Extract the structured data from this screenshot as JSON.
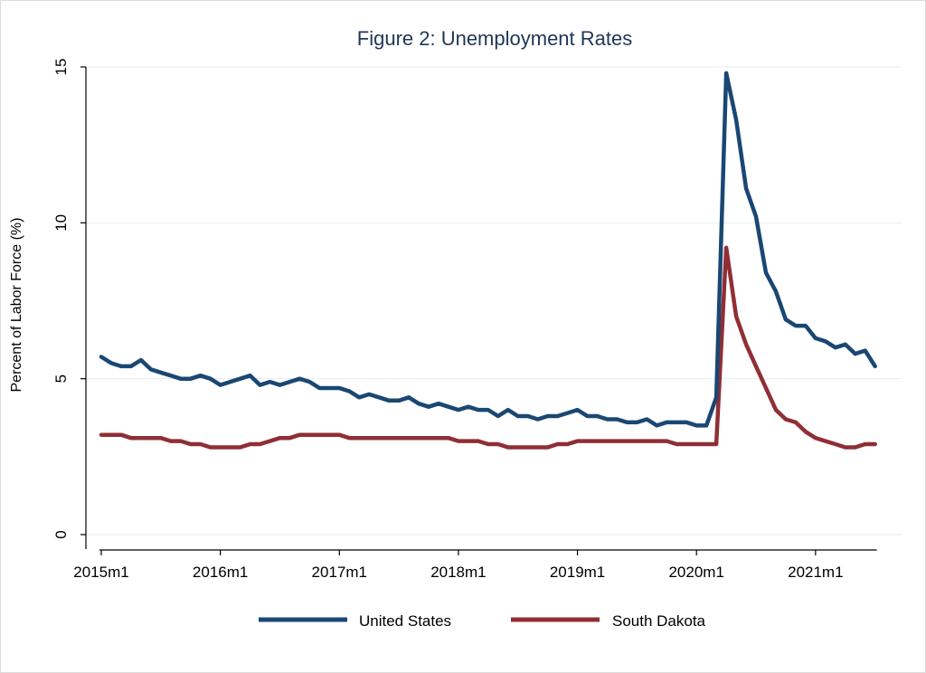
{
  "chart_data": {
    "type": "line",
    "title": "Figure 2: Unemployment Rates",
    "xlabel": "",
    "ylabel": "Percent of Labor Force (%)",
    "ylim": [
      0,
      15
    ],
    "yticks": [
      0,
      5,
      10,
      15
    ],
    "x_ticks": [
      {
        "label": "2015m1",
        "index": 0
      },
      {
        "label": "2016m1",
        "index": 12
      },
      {
        "label": "2017m1",
        "index": 24
      },
      {
        "label": "2018m1",
        "index": 36
      },
      {
        "label": "2019m1",
        "index": 48
      },
      {
        "label": "2020m1",
        "index": 60
      },
      {
        "label": "2021m1",
        "index": 72
      }
    ],
    "x_start": "2015m1",
    "x_end": "2021m7",
    "grid": true,
    "legend_position": "bottom",
    "series": [
      {
        "name": "United States",
        "color": "#1a4773",
        "values": [
          5.7,
          5.5,
          5.4,
          5.4,
          5.6,
          5.3,
          5.2,
          5.1,
          5.0,
          5.0,
          5.1,
          5.0,
          4.8,
          4.9,
          5.0,
          5.1,
          4.8,
          4.9,
          4.8,
          4.9,
          5.0,
          4.9,
          4.7,
          4.7,
          4.7,
          4.6,
          4.4,
          4.5,
          4.4,
          4.3,
          4.3,
          4.4,
          4.2,
          4.1,
          4.2,
          4.1,
          4.0,
          4.1,
          4.0,
          4.0,
          3.8,
          4.0,
          3.8,
          3.8,
          3.7,
          3.8,
          3.8,
          3.9,
          4.0,
          3.8,
          3.8,
          3.7,
          3.7,
          3.6,
          3.6,
          3.7,
          3.5,
          3.6,
          3.6,
          3.6,
          3.5,
          3.5,
          4.4,
          14.8,
          13.3,
          11.1,
          10.2,
          8.4,
          7.8,
          6.9,
          6.7,
          6.7,
          6.3,
          6.2,
          6.0,
          6.1,
          5.8,
          5.9,
          5.4
        ]
      },
      {
        "name": "South Dakota",
        "color": "#8f2f35",
        "values": [
          3.2,
          3.2,
          3.2,
          3.1,
          3.1,
          3.1,
          3.1,
          3.0,
          3.0,
          2.9,
          2.9,
          2.8,
          2.8,
          2.8,
          2.8,
          2.9,
          2.9,
          3.0,
          3.1,
          3.1,
          3.2,
          3.2,
          3.2,
          3.2,
          3.2,
          3.1,
          3.1,
          3.1,
          3.1,
          3.1,
          3.1,
          3.1,
          3.1,
          3.1,
          3.1,
          3.1,
          3.0,
          3.0,
          3.0,
          2.9,
          2.9,
          2.8,
          2.8,
          2.8,
          2.8,
          2.8,
          2.9,
          2.9,
          3.0,
          3.0,
          3.0,
          3.0,
          3.0,
          3.0,
          3.0,
          3.0,
          3.0,
          3.0,
          2.9,
          2.9,
          2.9,
          2.9,
          2.9,
          9.2,
          7.0,
          6.1,
          5.4,
          4.7,
          4.0,
          3.7,
          3.6,
          3.3,
          3.1,
          3.0,
          2.9,
          2.8,
          2.8,
          2.9,
          2.9
        ]
      }
    ]
  }
}
